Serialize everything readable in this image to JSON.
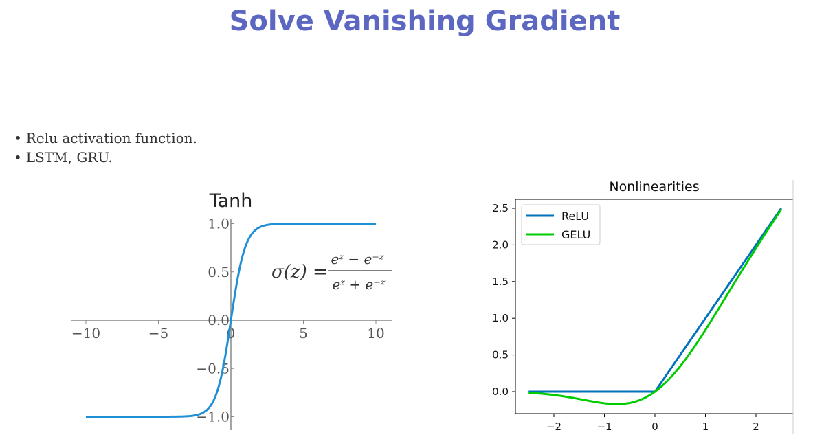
{
  "slide": {
    "title": "Solve Vanishing Gradient",
    "bullets": [
      "Relu activation function.",
      "LSTM, GRU."
    ]
  },
  "colors": {
    "title": "#5b67c0",
    "tanh_line": "#1f8fd6",
    "relu_line": "#0072bd",
    "gelu_line": "#00cc00"
  },
  "chart_data": [
    {
      "type": "line",
      "title": "Tanh",
      "xlim": [
        -10,
        10
      ],
      "ylim": [
        -1,
        1
      ],
      "x_ticks": [
        "−10",
        "−5",
        "0",
        "5",
        "10"
      ],
      "y_ticks": [
        "1.0",
        "0.5",
        "0.0",
        "−0.5",
        "−1.0"
      ],
      "series": [
        {
          "function": "tanh",
          "x_range": [
            -10,
            10
          ]
        }
      ],
      "annotation": {
        "lhs": "σ(z) =",
        "numerator": "eᶻ − e⁻ᶻ",
        "denominator": "eᶻ + e⁻ᶻ"
      }
    },
    {
      "type": "line",
      "title": "Nonlinearities",
      "xlim": [
        -2.7,
        2.7
      ],
      "ylim": [
        -0.3,
        2.6
      ],
      "x_ticks": [
        "−2",
        "−1",
        "0",
        "1",
        "2"
      ],
      "y_ticks": [
        "0.0",
        "0.5",
        "1.0",
        "1.5",
        "2.0",
        "2.5"
      ],
      "legend_position": "top-left",
      "series": [
        {
          "name": "ReLU",
          "function": "relu",
          "x_range": [
            -2.5,
            2.5
          ]
        },
        {
          "name": "GELU",
          "function": "gelu",
          "x_range": [
            -2.5,
            2.5
          ]
        }
      ]
    }
  ]
}
